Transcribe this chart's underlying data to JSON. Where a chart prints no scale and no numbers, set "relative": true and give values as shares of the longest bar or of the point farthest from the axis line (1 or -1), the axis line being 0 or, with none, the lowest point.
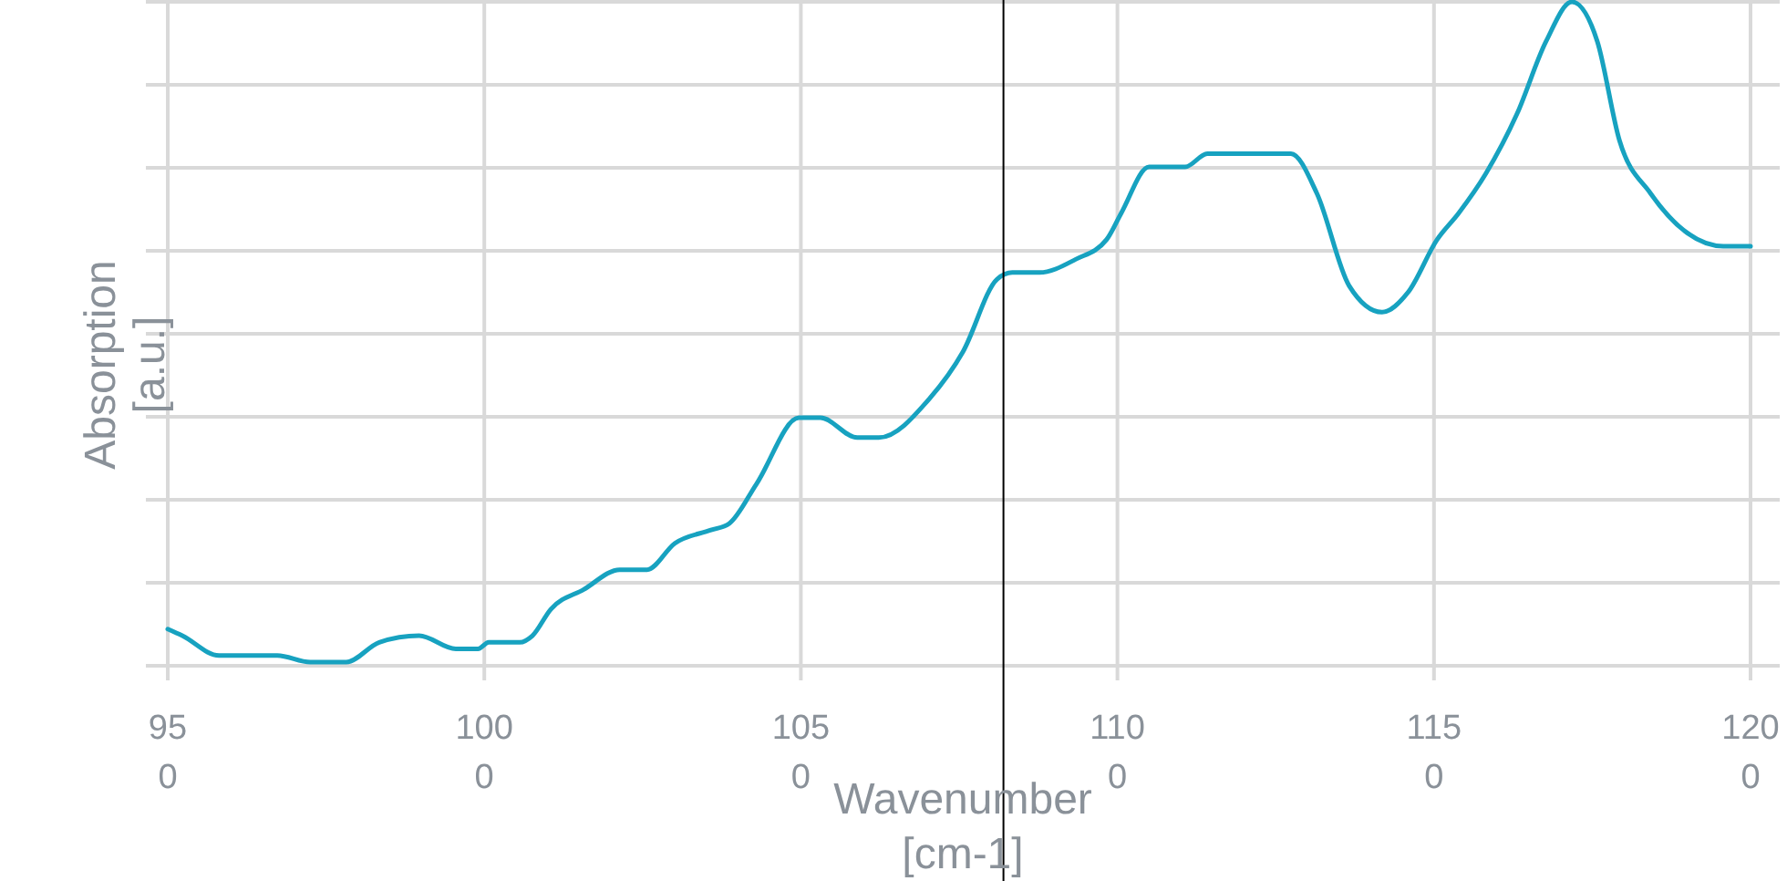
{
  "chart_data": {
    "type": "line",
    "xlabel": "Wavenumber [cm-1]",
    "ylabel": "Absorption [a.u.]",
    "relative": true,
    "grid": true,
    "xlim": [
      950,
      1200
    ],
    "xticks": [
      950,
      1000,
      1050,
      1100,
      1150,
      1200
    ],
    "x": [
      950,
      952.3,
      958.1,
      963.8,
      967.3,
      972.5,
      978.2,
      983.4,
      989.7,
      995.5,
      999,
      1000.7,
      1005.6,
      1007.6,
      1010.5,
      1015.7,
      1021.4,
      1025.7,
      1030.1,
      1035.8,
      1038.7,
      1043,
      1049.7,
      1053.1,
      1058.9,
      1062.3,
      1070.4,
      1075.6,
      1081,
      1083.4,
      1087.7,
      1093.4,
      1098.3,
      1100.6,
      1105,
      1110.7,
      1114.2,
      1127.4,
      1131.5,
      1136.6,
      1141.8,
      1145.9,
      1150.5,
      1153.9,
      1158.2,
      1163.1,
      1167.7,
      1171.8,
      1175.8,
      1179.3,
      1184.2,
      1190,
      1195.7,
      1200
    ],
    "series": [
      {
        "color": "#17a2c0",
        "values": [
          0.05,
          0.04,
          0.01,
          0.01,
          0.01,
          0,
          0,
          0.03,
          0.04,
          0.02,
          0.02,
          0.03,
          0.03,
          0.04,
          0.08,
          0.11,
          0.14,
          0.14,
          0.18,
          0.2,
          0.21,
          0.27,
          0.37,
          0.37,
          0.34,
          0.34,
          0.4,
          0.47,
          0.58,
          0.59,
          0.59,
          0.61,
          0.64,
          0.68,
          0.75,
          0.75,
          0.77,
          0.77,
          0.71,
          0.57,
          0.53,
          0.56,
          0.64,
          0.68,
          0.74,
          0.83,
          0.94,
          1,
          0.94,
          0.79,
          0.71,
          0.65,
          0.63,
          0.63
        ]
      }
    ],
    "ref_lines": [
      {
        "axis": "x",
        "value": 1082,
        "color": "#000000"
      }
    ]
  }
}
